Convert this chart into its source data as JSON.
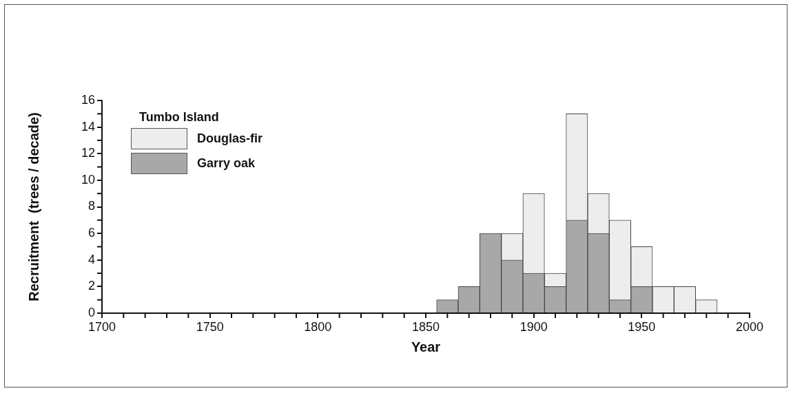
{
  "chart_data": {
    "type": "bar",
    "xlabel": "Year",
    "ylabel": "Recruitment  (trees / decade)",
    "legend_title": "Tumbo Island",
    "legend": "top left",
    "stacked": true,
    "grid": false,
    "x": [
      1860,
      1870,
      1880,
      1890,
      1900,
      1910,
      1920,
      1930,
      1940,
      1950,
      1960,
      1970,
      1980
    ],
    "series": [
      {
        "name": "Garry oak",
        "color": "#a8a8a8",
        "values": [
          1,
          2,
          6,
          4,
          3,
          2,
          7,
          6,
          1,
          2,
          0,
          0,
          0
        ]
      },
      {
        "name": "Douglas-fir",
        "color": "#ededed",
        "values": [
          0,
          0,
          0,
          2,
          6,
          1,
          8,
          3,
          6,
          3,
          2,
          2,
          1
        ]
      }
    ],
    "xlim": [
      1700,
      2000
    ],
    "xticks": [
      1700,
      {
        "value": 1710,
        "label": null
      },
      {
        "value": 1720,
        "label": null
      },
      {
        "value": 1730,
        "label": null
      },
      {
        "value": 1740,
        "label": null
      },
      1750,
      {
        "value": 1760,
        "label": null
      },
      {
        "value": 1770,
        "label": null
      },
      {
        "value": 1780,
        "label": null
      },
      {
        "value": 1790,
        "label": null
      },
      1800,
      {
        "value": 1810,
        "label": null
      },
      {
        "value": 1820,
        "label": null
      },
      {
        "value": 1830,
        "label": null
      },
      {
        "value": 1840,
        "label": null
      },
      1850,
      {
        "value": 1860,
        "label": null
      },
      {
        "value": 1870,
        "label": null
      },
      {
        "value": 1880,
        "label": null
      },
      {
        "value": 1890,
        "label": null
      },
      1900,
      {
        "value": 1910,
        "label": null
      },
      {
        "value": 1920,
        "label": null
      },
      {
        "value": 1930,
        "label": null
      },
      {
        "value": 1940,
        "label": null
      },
      1950,
      {
        "value": 1960,
        "label": null
      },
      {
        "value": 1970,
        "label": null
      },
      {
        "value": 1980,
        "label": null
      },
      {
        "value": 1990,
        "label": null
      },
      2000
    ],
    "ylim": [
      0,
      16
    ],
    "yticks": [
      0,
      {
        "value": 1,
        "label": null
      },
      2,
      {
        "value": 3,
        "label": null
      },
      4,
      {
        "value": 5,
        "label": null
      },
      6,
      {
        "value": 7,
        "label": null
      },
      8,
      {
        "value": 9,
        "label": null
      },
      10,
      {
        "value": 11,
        "label": null
      },
      12,
      {
        "value": 13,
        "label": null
      },
      14,
      {
        "value": 15,
        "label": null
      },
      16
    ]
  }
}
